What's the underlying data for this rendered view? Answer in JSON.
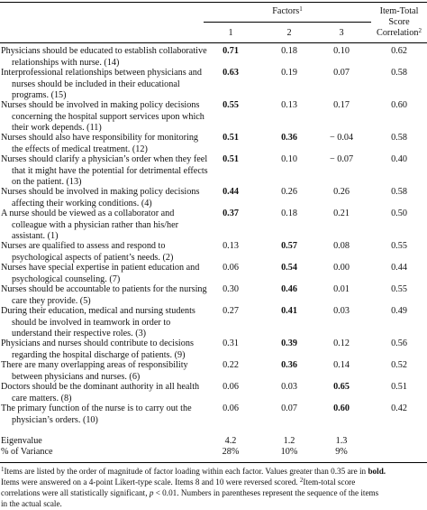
{
  "header": {
    "factors_label": "Factors",
    "factors_sup": "1",
    "col1": "1",
    "col2": "2",
    "col3": "3",
    "itc_line1": "Item-Total",
    "itc_line2": "Score",
    "itc_line3": "Correlation",
    "itc_sup": "2"
  },
  "rows": [
    {
      "lines": [
        "Physicians should be educated to establish collaborative",
        "relationships with nurse. (14)"
      ],
      "f1": "0.71",
      "f2": "0.18",
      "f3": "0.10",
      "itc": "0.62",
      "bold": 1
    },
    {
      "lines": [
        "Interprofessional relationships between physicians and",
        "nurses should be included in their educational",
        "programs. (15)"
      ],
      "f1": "0.63",
      "f2": "0.19",
      "f3": "0.07",
      "itc": "0.58",
      "bold": 1
    },
    {
      "lines": [
        "Nurses should be involved in making policy decisions",
        "concerning the hospital support services upon which",
        "their work depends. (11)"
      ],
      "f1": "0.55",
      "f2": "0.13",
      "f3": "0.17",
      "itc": "0.60",
      "bold": 1
    },
    {
      "lines": [
        "Nurses should also have responsibility for monitoring",
        "the effects of medical treatment. (12)"
      ],
      "f1": "0.51",
      "f2": "0.36",
      "f3": "− 0.04",
      "itc": "0.58",
      "bold": 1,
      "bold2": 2
    },
    {
      "lines": [
        "Nurses should clarify a physician’s order when they feel",
        "that it might have the potential for detrimental effects",
        "on the patient. (13)"
      ],
      "f1": "0.51",
      "f2": "0.10",
      "f3": "− 0.07",
      "itc": "0.40",
      "bold": 1
    },
    {
      "lines": [
        "Nurses should be involved in making policy decisions",
        "affecting their working conditions. (4)"
      ],
      "f1": "0.44",
      "f2": "0.26",
      "f3": "0.26",
      "itc": "0.58",
      "bold": 1
    },
    {
      "lines": [
        "A nurse should be viewed as a collaborator and",
        "colleague with a physician rather than his/her",
        "assistant. (1)"
      ],
      "f1": "0.37",
      "f2": "0.18",
      "f3": "0.21",
      "itc": "0.50",
      "bold": 1
    },
    {
      "lines": [
        "Nurses are qualified to assess and respond to",
        "psychological aspects of patient’s needs. (2)"
      ],
      "f1": "0.13",
      "f2": "0.57",
      "f3": "0.08",
      "itc": "0.55",
      "bold": 2
    },
    {
      "lines": [
        "Nurses have special expertise in patient education and",
        "psychological counseling. (7)"
      ],
      "f1": "0.06",
      "f2": "0.54",
      "f3": "0.00",
      "itc": "0.44",
      "bold": 2
    },
    {
      "lines": [
        "Nurses should be accountable to patients for the nursing",
        "care they provide. (5)"
      ],
      "f1": "0.30",
      "f2": "0.46",
      "f3": "0.01",
      "itc": "0.55",
      "bold": 2
    },
    {
      "lines": [
        "During their education, medical and nursing students",
        "should be involved in teamwork in order to",
        "understand their respective roles. (3)"
      ],
      "f1": "0.27",
      "f2": "0.41",
      "f3": "0.03",
      "itc": "0.49",
      "bold": 2
    },
    {
      "lines": [
        "Physicians and nurses should contribute to decisions",
        "regarding the hospital discharge of patients. (9)"
      ],
      "f1": "0.31",
      "f2": "0.39",
      "f3": "0.12",
      "itc": "0.56",
      "bold": 2
    },
    {
      "lines": [
        "There are many overlapping areas of responsibility",
        "between physicians and nurses. (6)"
      ],
      "f1": "0.22",
      "f2": "0.36",
      "f3": "0.14",
      "itc": "0.52",
      "bold": 2
    },
    {
      "lines": [
        "Doctors should be the dominant authority in all health",
        "care matters. (8)"
      ],
      "f1": "0.06",
      "f2": "0.03",
      "f3": "0.65",
      "itc": "0.51",
      "bold": 3
    },
    {
      "lines": [
        "The primary function of the nurse is to carry out the",
        "physician’s orders. (10)"
      ],
      "f1": "0.06",
      "f2": "0.07",
      "f3": "0.60",
      "itc": "0.42",
      "bold": 3
    }
  ],
  "summary": {
    "eigen_label": "Eigenvalue",
    "eigen": [
      "4.2",
      "1.2",
      "1.3"
    ],
    "variance_label": "% of Variance",
    "variance": [
      "28%",
      "10%",
      "9%"
    ]
  },
  "footnotes": {
    "sup1": "1",
    "text1a": "Items are listed by the order of magnitude of factor loading within each factor. Values greater than 0.35 are in ",
    "text1b": "bold.",
    "line2a": "Items were answered on a 4-point Likert-type scale. Items 8 and 10 were reversed scored. ",
    "sup2": "2",
    "line2b": "Item-total score",
    "line3a": "correlations were all statistically significant, ",
    "line3p": "p",
    "line3b": " < 0.01. Numbers in parentheses represent the sequence of the items",
    "line4": "in the actual scale."
  }
}
